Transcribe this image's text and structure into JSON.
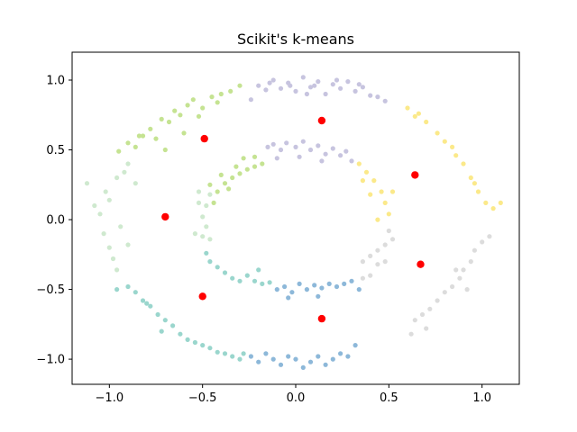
{
  "chart_data": {
    "type": "scatter",
    "title": "Scikit's k-means",
    "xlabel": "",
    "ylabel": "",
    "xlim": [
      -1.2,
      1.2
    ],
    "ylim": [
      -1.18,
      1.2
    ],
    "xticks": [
      -1.0,
      -0.5,
      0.0,
      0.5,
      1.0
    ],
    "xtick_labels": [
      "−1.0",
      "−0.5",
      "0.0",
      "0.5",
      "1.0"
    ],
    "yticks": [
      -1.0,
      -0.5,
      0.0,
      0.5,
      1.0
    ],
    "ytick_labels": [
      "−1.0",
      "−0.5",
      "0.0",
      "0.5",
      "1.0"
    ],
    "grid": false,
    "legend": "none",
    "clusters": [
      {
        "color": "#bc80bd",
        "light_color": "#c7c4df",
        "note": "top",
        "points": [
          [
            -0.24,
            0.86
          ],
          [
            -0.2,
            0.96
          ],
          [
            -0.16,
            0.93
          ],
          [
            -0.12,
            1.0
          ],
          [
            -0.08,
            0.94
          ],
          [
            -0.04,
            0.98
          ],
          [
            0.0,
            0.92
          ],
          [
            0.04,
            1.02
          ],
          [
            0.08,
            0.95
          ],
          [
            0.12,
            0.99
          ],
          [
            0.16,
            0.9
          ],
          [
            0.2,
            0.97
          ],
          [
            0.24,
            0.94
          ],
          [
            0.28,
            0.99
          ],
          [
            0.32,
            0.92
          ],
          [
            0.36,
            0.95
          ],
          [
            0.4,
            0.89
          ],
          [
            0.44,
            0.88
          ],
          [
            0.48,
            0.85
          ],
          [
            -0.03,
            0.96
          ],
          [
            0.22,
            1.0
          ],
          [
            0.06,
            0.9
          ],
          [
            0.34,
            0.97
          ],
          [
            -0.14,
            0.98
          ],
          [
            0.1,
            0.96
          ],
          [
            -0.15,
            0.52
          ],
          [
            -0.12,
            0.54
          ],
          [
            -0.08,
            0.5
          ],
          [
            -0.05,
            0.55
          ],
          [
            0.0,
            0.52
          ],
          [
            0.04,
            0.56
          ],
          [
            0.08,
            0.5
          ],
          [
            0.12,
            0.53
          ],
          [
            0.16,
            0.47
          ],
          [
            0.2,
            0.51
          ],
          [
            0.24,
            0.46
          ],
          [
            0.27,
            0.49
          ],
          [
            0.3,
            0.42
          ],
          [
            0.02,
            0.45
          ],
          [
            -0.1,
            0.44
          ],
          [
            0.14,
            0.42
          ]
        ]
      },
      {
        "color": "#b3de69",
        "light_color": "#c5e392",
        "note": "upper-left",
        "points": [
          [
            -0.95,
            0.49
          ],
          [
            -0.9,
            0.55
          ],
          [
            -0.86,
            0.52
          ],
          [
            -0.82,
            0.6
          ],
          [
            -0.78,
            0.65
          ],
          [
            -0.75,
            0.58
          ],
          [
            -0.72,
            0.72
          ],
          [
            -0.68,
            0.7
          ],
          [
            -0.65,
            0.78
          ],
          [
            -0.62,
            0.75
          ],
          [
            -0.58,
            0.82
          ],
          [
            -0.55,
            0.86
          ],
          [
            -0.5,
            0.8
          ],
          [
            -0.45,
            0.88
          ],
          [
            -0.4,
            0.9
          ],
          [
            -0.35,
            0.92
          ],
          [
            -0.3,
            0.96
          ],
          [
            -0.6,
            0.62
          ],
          [
            -0.7,
            0.5
          ],
          [
            -0.52,
            0.74
          ],
          [
            -0.42,
            0.84
          ],
          [
            -0.84,
            0.6
          ],
          [
            -0.44,
            0.12
          ],
          [
            -0.42,
            0.2
          ],
          [
            -0.38,
            0.26
          ],
          [
            -0.34,
            0.3
          ],
          [
            -0.3,
            0.33
          ],
          [
            -0.26,
            0.36
          ],
          [
            -0.22,
            0.38
          ],
          [
            -0.18,
            0.4
          ],
          [
            -0.32,
            0.38
          ],
          [
            -0.4,
            0.32
          ],
          [
            -0.28,
            0.44
          ],
          [
            -0.22,
            0.45
          ],
          [
            -0.36,
            0.22
          ],
          [
            -0.46,
            0.25
          ]
        ]
      },
      {
        "color": "#ccebc5",
        "light_color": "#cfe9cf",
        "note": "left",
        "points": [
          [
            -1.12,
            0.26
          ],
          [
            -1.08,
            0.1
          ],
          [
            -1.05,
            0.04
          ],
          [
            -1.03,
            -0.1
          ],
          [
            -1.0,
            -0.2
          ],
          [
            -0.98,
            -0.28
          ],
          [
            -0.96,
            -0.36
          ],
          [
            -1.02,
            0.2
          ],
          [
            -0.96,
            0.3
          ],
          [
            -0.92,
            0.34
          ],
          [
            -0.9,
            0.4
          ],
          [
            -1.0,
            0.14
          ],
          [
            -0.94,
            -0.05
          ],
          [
            -0.9,
            -0.18
          ],
          [
            -0.86,
            0.26
          ],
          [
            -0.52,
            0.12
          ],
          [
            -0.5,
            0.02
          ],
          [
            -0.48,
            -0.05
          ],
          [
            -0.5,
            -0.12
          ],
          [
            -0.48,
            0.1
          ],
          [
            -0.46,
            0.18
          ],
          [
            -0.52,
            0.2
          ],
          [
            -0.54,
            -0.1
          ],
          [
            -0.46,
            -0.14
          ]
        ]
      },
      {
        "color": "#8dd3c7",
        "light_color": "#9ad6cd",
        "note": "bottom-left",
        "points": [
          [
            -0.96,
            -0.5
          ],
          [
            -0.9,
            -0.48
          ],
          [
            -0.86,
            -0.52
          ],
          [
            -0.82,
            -0.58
          ],
          [
            -0.78,
            -0.62
          ],
          [
            -0.74,
            -0.68
          ],
          [
            -0.7,
            -0.72
          ],
          [
            -0.66,
            -0.76
          ],
          [
            -0.62,
            -0.82
          ],
          [
            -0.58,
            -0.86
          ],
          [
            -0.54,
            -0.88
          ],
          [
            -0.5,
            -0.9
          ],
          [
            -0.46,
            -0.92
          ],
          [
            -0.42,
            -0.95
          ],
          [
            -0.38,
            -0.96
          ],
          [
            -0.34,
            -0.98
          ],
          [
            -0.3,
            -1.0
          ],
          [
            -0.28,
            -0.96
          ],
          [
            -0.72,
            -0.8
          ],
          [
            -0.8,
            -0.6
          ],
          [
            -0.46,
            -0.3
          ],
          [
            -0.42,
            -0.34
          ],
          [
            -0.38,
            -0.38
          ],
          [
            -0.34,
            -0.42
          ],
          [
            -0.3,
            -0.44
          ],
          [
            -0.26,
            -0.4
          ],
          [
            -0.22,
            -0.44
          ],
          [
            -0.18,
            -0.46
          ],
          [
            -0.14,
            -0.45
          ],
          [
            -0.2,
            -0.36
          ],
          [
            -0.48,
            -0.24
          ]
        ]
      },
      {
        "color": "#80b1d3",
        "light_color": "#8db8d9",
        "note": "bottom",
        "points": [
          [
            -0.24,
            -0.98
          ],
          [
            -0.2,
            -1.02
          ],
          [
            -0.16,
            -0.96
          ],
          [
            -0.12,
            -1.0
          ],
          [
            -0.08,
            -1.04
          ],
          [
            -0.04,
            -0.98
          ],
          [
            0.0,
            -1.0
          ],
          [
            0.04,
            -1.06
          ],
          [
            0.08,
            -1.02
          ],
          [
            0.12,
            -0.98
          ],
          [
            0.16,
            -1.04
          ],
          [
            0.2,
            -1.0
          ],
          [
            0.24,
            -0.96
          ],
          [
            0.28,
            -0.98
          ],
          [
            0.32,
            -0.9
          ],
          [
            -0.1,
            -0.5
          ],
          [
            -0.06,
            -0.48
          ],
          [
            -0.02,
            -0.52
          ],
          [
            0.02,
            -0.46
          ],
          [
            0.06,
            -0.5
          ],
          [
            0.1,
            -0.47
          ],
          [
            0.14,
            -0.49
          ],
          [
            0.18,
            -0.46
          ],
          [
            0.22,
            -0.48
          ],
          [
            0.26,
            -0.46
          ],
          [
            0.3,
            -0.44
          ],
          [
            0.34,
            -0.5
          ],
          [
            -0.04,
            -0.56
          ],
          [
            0.12,
            -0.55
          ]
        ]
      },
      {
        "color": "#d9d9d9",
        "light_color": "#dcdcdc",
        "note": "right",
        "points": [
          [
            0.64,
            -0.72
          ],
          [
            0.68,
            -0.68
          ],
          [
            0.72,
            -0.64
          ],
          [
            0.76,
            -0.58
          ],
          [
            0.8,
            -0.52
          ],
          [
            0.84,
            -0.48
          ],
          [
            0.88,
            -0.42
          ],
          [
            0.9,
            -0.36
          ],
          [
            0.94,
            -0.3
          ],
          [
            0.96,
            -0.22
          ],
          [
            1.0,
            -0.16
          ],
          [
            1.04,
            -0.12
          ],
          [
            0.7,
            -0.78
          ],
          [
            0.62,
            -0.82
          ],
          [
            0.86,
            -0.36
          ],
          [
            0.92,
            -0.5
          ],
          [
            0.36,
            -0.3
          ],
          [
            0.4,
            -0.26
          ],
          [
            0.44,
            -0.22
          ],
          [
            0.48,
            -0.18
          ],
          [
            0.52,
            -0.14
          ],
          [
            0.5,
            -0.08
          ],
          [
            0.44,
            -0.32
          ],
          [
            0.4,
            -0.4
          ],
          [
            0.36,
            -0.42
          ],
          [
            0.48,
            -0.3
          ]
        ]
      },
      {
        "color": "#ffed6f",
        "light_color": "#fbe98a",
        "note": "upper-right",
        "points": [
          [
            0.6,
            0.8
          ],
          [
            0.66,
            0.76
          ],
          [
            0.7,
            0.7
          ],
          [
            0.76,
            0.62
          ],
          [
            0.8,
            0.56
          ],
          [
            0.86,
            0.46
          ],
          [
            0.9,
            0.4
          ],
          [
            0.94,
            0.3
          ],
          [
            0.98,
            0.2
          ],
          [
            1.02,
            0.12
          ],
          [
            1.06,
            0.08
          ],
          [
            1.1,
            0.12
          ],
          [
            0.64,
            0.74
          ],
          [
            0.84,
            0.52
          ],
          [
            0.96,
            0.26
          ],
          [
            0.34,
            0.4
          ],
          [
            0.38,
            0.34
          ],
          [
            0.42,
            0.28
          ],
          [
            0.46,
            0.2
          ],
          [
            0.48,
            0.12
          ],
          [
            0.5,
            0.04
          ],
          [
            0.44,
            0.0
          ],
          [
            0.52,
            0.2
          ],
          [
            0.4,
            0.18
          ],
          [
            0.36,
            0.28
          ]
        ]
      }
    ],
    "centroids": {
      "color": "#ff0000",
      "points": [
        [
          0.14,
          0.71
        ],
        [
          -0.49,
          0.58
        ],
        [
          -0.7,
          0.02
        ],
        [
          -0.5,
          -0.55
        ],
        [
          0.14,
          -0.71
        ],
        [
          0.67,
          -0.32
        ],
        [
          0.64,
          0.32
        ]
      ]
    }
  }
}
